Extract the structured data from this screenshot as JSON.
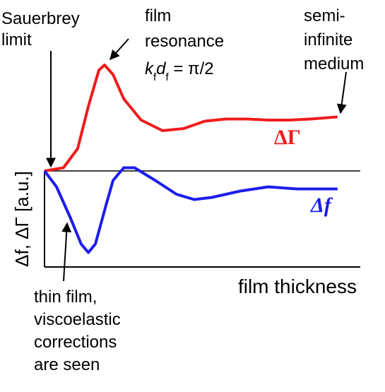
{
  "chart_data": {
    "type": "line",
    "x_label": "film thickness",
    "y_label": "Δf, ΔΓ [a.u.]",
    "xlim": [
      0,
      10
    ],
    "ylim": [
      -0.9,
      1.2
    ],
    "series": [
      {
        "name": "ΔΓ",
        "color": "#ee1c1c",
        "x": [
          0,
          0.6,
          1.05,
          1.39,
          1.72,
          1.9,
          2.17,
          2.51,
          3.06,
          3.74,
          4.41,
          5.08,
          5.75,
          6.42,
          7.09,
          7.76,
          8.43,
          9.28
        ],
        "values": [
          0,
          0.03,
          0.21,
          0.61,
          0.95,
          1.0,
          0.91,
          0.68,
          0.48,
          0.38,
          0.4,
          0.47,
          0.49,
          0.49,
          0.48,
          0.48,
          0.49,
          0.51
        ]
      },
      {
        "name": "Δf",
        "color": "#1c1cee",
        "x": [
          0,
          0.38,
          0.83,
          1.16,
          1.39,
          1.61,
          1.95,
          2.17,
          2.51,
          2.85,
          3.51,
          4.18,
          4.74,
          5.3,
          6.2,
          7.09,
          7.99,
          9.28
        ],
        "values": [
          0,
          -0.15,
          -0.45,
          -0.69,
          -0.77,
          -0.69,
          -0.32,
          -0.09,
          0.03,
          0.03,
          -0.09,
          -0.22,
          -0.27,
          -0.25,
          -0.19,
          -0.15,
          -0.17,
          -0.17
        ]
      }
    ],
    "annotations": {
      "sauerbrey": [
        "Sauerbrey",
        "limit"
      ],
      "resonance": [
        "film",
        "resonance"
      ],
      "resonance_formula": [
        "k",
        "f",
        "d",
        "f",
        " = π/2"
      ],
      "semi_infinite": [
        "semi-",
        "infinite",
        "medium"
      ],
      "thin_film": [
        "thin film,",
        "viscoelastic",
        "corrections",
        "are seen"
      ]
    }
  }
}
